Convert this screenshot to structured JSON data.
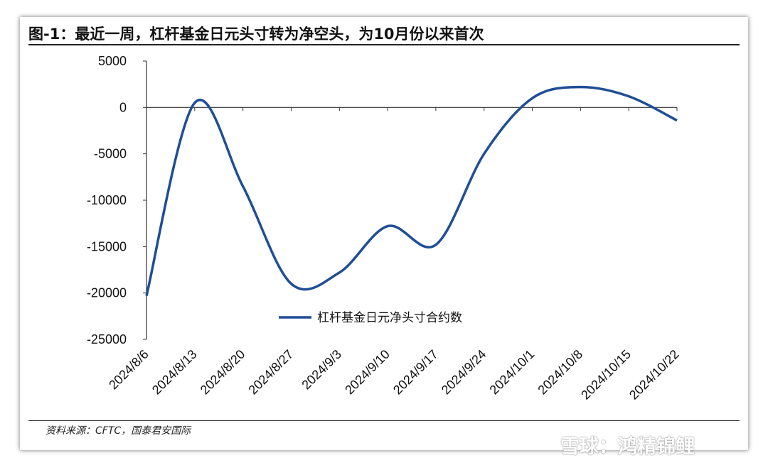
{
  "title": "图-1：最近一周，杠杆基金日元头寸转为净空头，为10月份以来首次",
  "source": "资料来源：CFTC，国泰君安国际",
  "watermark": "雪球：鸿精锦鲤",
  "colors": {
    "line": "#1f4e96",
    "axis": "#333333"
  },
  "chart_data": {
    "type": "line",
    "title": "图-1：最近一周，杠杆基金日元头寸转为净空头，为10月份以来首次",
    "categories": [
      "2024/8/6",
      "2024/8/13",
      "2024/8/20",
      "2024/8/27",
      "2024/9/3",
      "2024/9/10",
      "2024/9/17",
      "2024/9/24",
      "2024/10/1",
      "2024/10/8",
      "2024/10/15",
      "2024/10/22"
    ],
    "series": [
      {
        "name": "杠杆基金日元净头寸合约数",
        "values": [
          -20300,
          500,
          -8500,
          -19000,
          -17800,
          -12800,
          -14800,
          -5000,
          1000,
          2200,
          1200,
          -1400
        ]
      }
    ],
    "ylim": [
      -25000,
      5000
    ],
    "yticks": [
      5000,
      0,
      -5000,
      -10000,
      -15000,
      -20000,
      -25000
    ],
    "ytick_labels": [
      "5000",
      "0",
      "-5000",
      "-10000",
      "-15000",
      "-20000",
      "-25000"
    ],
    "legend_position": "center",
    "grid": false,
    "xlabel": "",
    "ylabel": ""
  }
}
